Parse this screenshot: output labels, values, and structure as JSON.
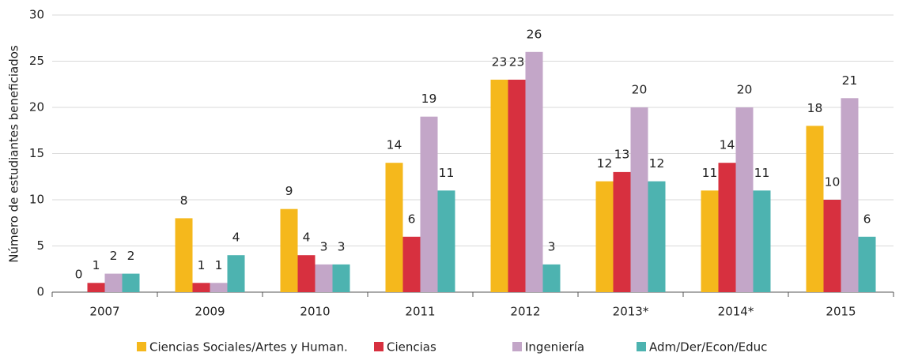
{
  "chart_data": {
    "type": "bar",
    "y_label": "Número de estudiantes beneficiados",
    "categories": [
      "2007",
      "2009",
      "2010",
      "2011",
      "2012",
      "2013*",
      "2014*",
      "2015"
    ],
    "series": [
      {
        "name": "Ciencias Sociales/Artes y Human.",
        "color": "#f5b81c",
        "values": [
          0,
          8,
          9,
          14,
          23,
          12,
          11,
          18
        ]
      },
      {
        "name": "Ciencias",
        "color": "#d7303f",
        "values": [
          1,
          1,
          4,
          6,
          23,
          13,
          14,
          10
        ]
      },
      {
        "name": "Ingeniería",
        "color": "#c3a6c8",
        "values": [
          2,
          1,
          3,
          19,
          26,
          20,
          20,
          21
        ]
      },
      {
        "name": "Adm/Der/Econ/Educ",
        "color": "#4db3b0",
        "values": [
          2,
          4,
          3,
          11,
          3,
          12,
          11,
          6
        ]
      }
    ],
    "ylim": [
      0,
      30
    ],
    "yticks": [
      0,
      5,
      10,
      15,
      20,
      25,
      30
    ],
    "grid": true,
    "legend": "bottom"
  }
}
